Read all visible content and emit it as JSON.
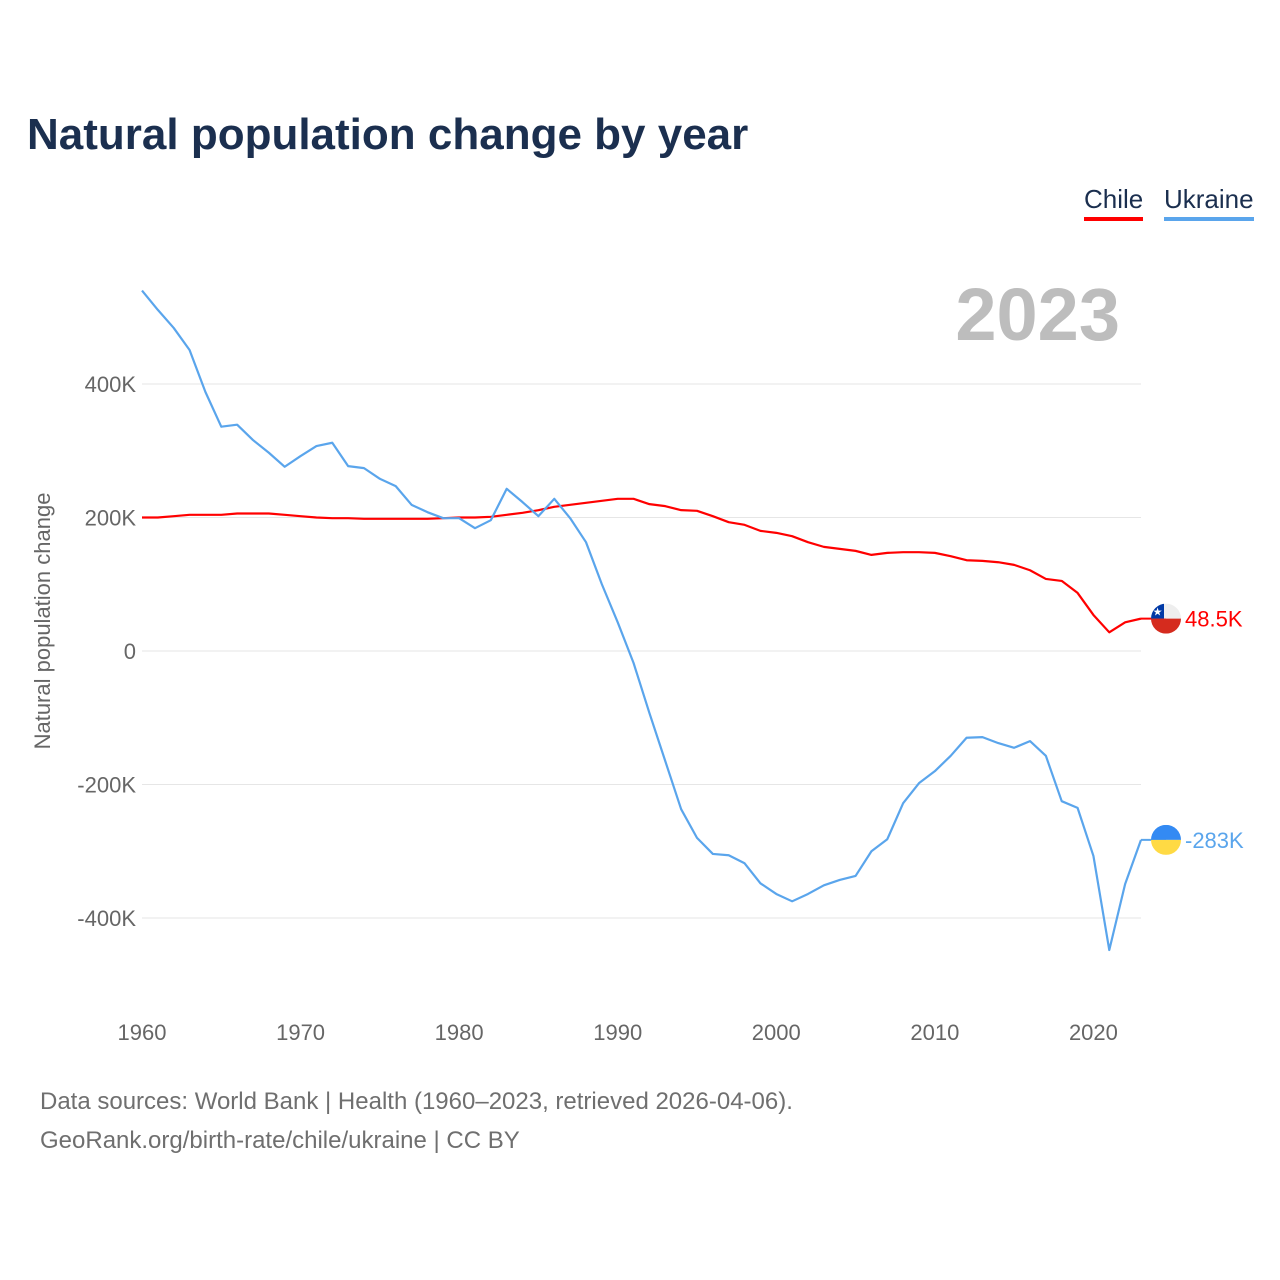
{
  "chart_data": {
    "type": "line",
    "title": "Natural population change by year",
    "xlabel": "",
    "ylabel": "Natural population change",
    "xlim": [
      1960,
      2023
    ],
    "ylim": [
      -500000,
      540000
    ],
    "yticks": [
      -400000,
      -200000,
      0,
      200000,
      400000
    ],
    "ytick_labels": [
      "-400K",
      "-200K",
      "0",
      "200K",
      "400K"
    ],
    "xticks": [
      1960,
      1970,
      1980,
      1990,
      2000,
      2010,
      2020
    ],
    "xtick_labels": [
      "1960",
      "1970",
      "1980",
      "1990",
      "2000",
      "2010",
      "2020"
    ],
    "grid": true,
    "legend_placement": "top-right",
    "current_year_label": "2023",
    "x_start": 1960,
    "series": [
      {
        "name": "Chile",
        "color": "#ff0000",
        "end_label": "48.5K",
        "flag": "chile-flag",
        "values": [
          200,
          200,
          202,
          204,
          204,
          204,
          206,
          206,
          206,
          204,
          202,
          200,
          199,
          199,
          198,
          198,
          198,
          198,
          198,
          199,
          200,
          200,
          201,
          204,
          207,
          211,
          216,
          219,
          222,
          225,
          228,
          228,
          220,
          217,
          211,
          210,
          202,
          193,
          189,
          180,
          177,
          172,
          163,
          156,
          153,
          150,
          144,
          147,
          148,
          148,
          147,
          142,
          136,
          135,
          133,
          129,
          121,
          108,
          105,
          87,
          54,
          28,
          43,
          48.5
        ]
      },
      {
        "name": "Ukraine",
        "color": "#5aa5ec",
        "end_label": "-283K",
        "flag": "ukraine-flag",
        "values": [
          540,
          511,
          484,
          451,
          388,
          336,
          339,
          316,
          297,
          276,
          292,
          307,
          312,
          277,
          274,
          258,
          247,
          219,
          208,
          199,
          199,
          184,
          196,
          243,
          223,
          202,
          228,
          199,
          163,
          100,
          43,
          -18,
          -93,
          -165,
          -237,
          -280,
          -304,
          -306,
          -318,
          -348,
          -364,
          -375,
          -364,
          -351,
          -343,
          -337,
          -300,
          -282,
          -228,
          -198,
          -180,
          -157,
          -130,
          -129,
          -138,
          -145,
          -135,
          -157,
          -225,
          -235,
          -307,
          -448,
          -349,
          -283
        ]
      }
    ],
    "value_unit": "thousands"
  },
  "footer": {
    "source": "Data sources: World Bank | Health (1960–2023, retrieved 2026-04-06).",
    "credit": "GeoRank.org/birth-rate/chile/ukraine | CC BY"
  }
}
